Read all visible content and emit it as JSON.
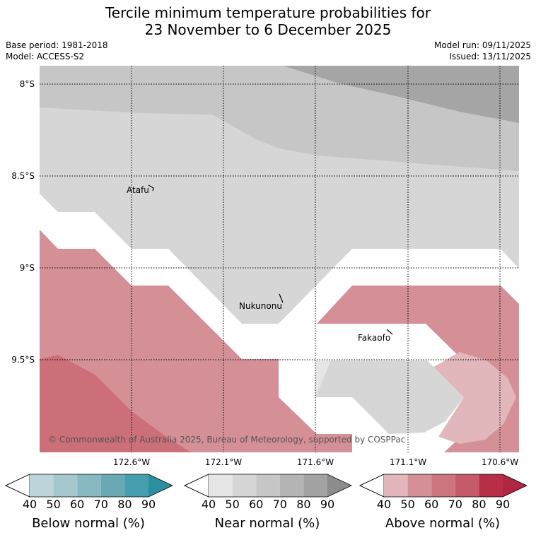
{
  "title": {
    "line1": "Tercile minimum temperature probabilities for",
    "line2": "23 November to 6 December 2025"
  },
  "meta": {
    "base_period": "Base period: 1981-2018",
    "model": "Model: ACCESS-S2",
    "model_run": "Model run: 09/11/2025",
    "issued": "Issued: 13/11/2025"
  },
  "map": {
    "lat_labels": [
      "8°S",
      "8.5°S",
      "9°S",
      "9.5°S"
    ],
    "lon_labels": [
      "172.6°W",
      "172.1°W",
      "171.6°W",
      "171.1°W",
      "170.6°W"
    ],
    "places": [
      {
        "name": "Atafu"
      },
      {
        "name": "Nukunonu"
      },
      {
        "name": "Fakaofo"
      }
    ],
    "copyright": "© Commonwealth of Australia 2025, Bureau of Meteorology, supported by COSPPac"
  },
  "colorbars": [
    {
      "label": "Below normal (%)",
      "ticks": [
        "40",
        "50",
        "60",
        "70",
        "80",
        "90"
      ],
      "colors": [
        "#bcd5db",
        "#a5c7cd",
        "#88b8c2",
        "#6aa8b4",
        "#469fae",
        "#2a8f9f"
      ]
    },
    {
      "label": "Near normal (%)",
      "ticks": [
        "40",
        "50",
        "60",
        "70",
        "80",
        "90"
      ],
      "colors": [
        "#e6e6e6",
        "#d6d6d6",
        "#c6c6c6",
        "#b4b4b4",
        "#a3a3a3",
        "#8c8c8c"
      ]
    },
    {
      "label": "Above normal (%)",
      "ticks": [
        "40",
        "50",
        "60",
        "70",
        "80",
        "90"
      ],
      "colors": [
        "#e1b7bc",
        "#d58f97",
        "#cc757e",
        "#c55b68",
        "#b72e46",
        "#b02541"
      ]
    }
  ]
}
